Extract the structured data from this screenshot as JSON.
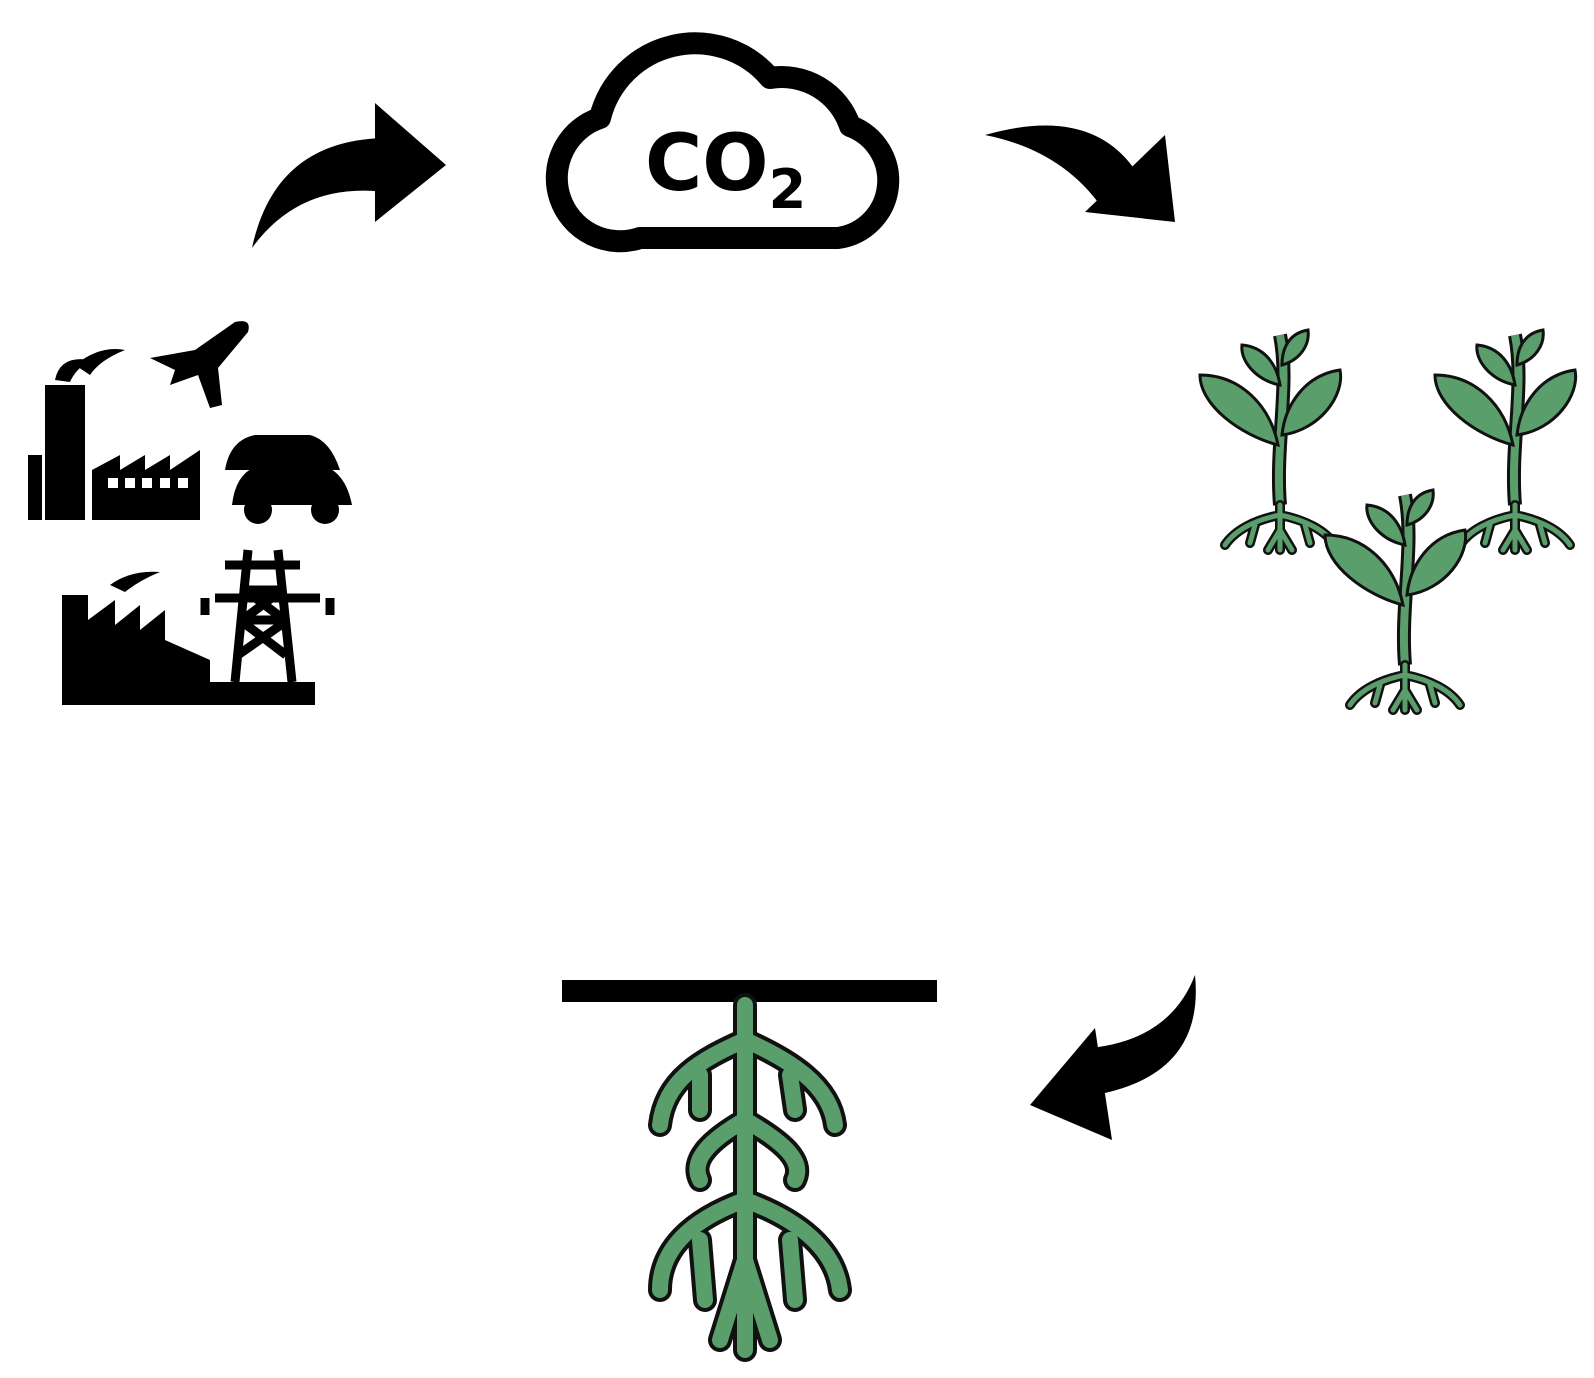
{
  "cloud": {
    "label": "CO",
    "subscript": "2"
  }
}
